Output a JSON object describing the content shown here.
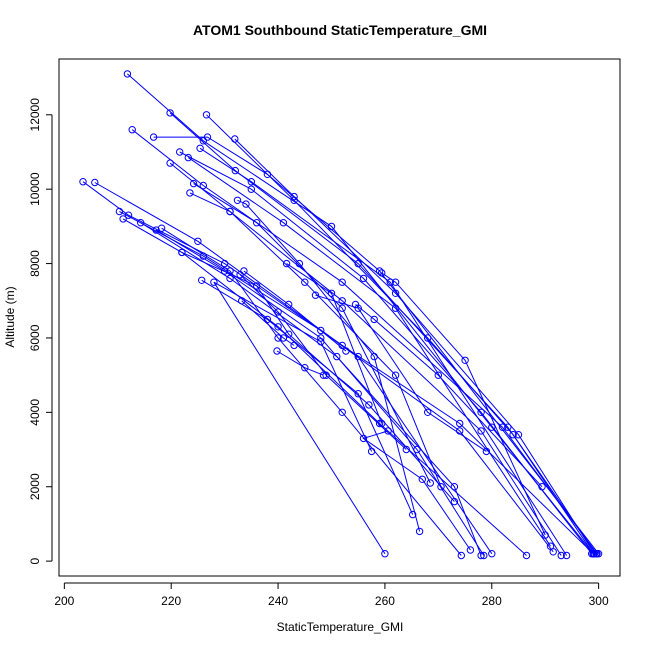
{
  "chart_data": {
    "type": "scatter",
    "title": "ATOM1 Southbound StaticTemperature_GMI",
    "xlabel": "StaticTemperature_GMI",
    "ylabel": "Altitude (m)",
    "xlim": [
      199,
      304
    ],
    "ylim": [
      -400,
      13500
    ],
    "xticks": [
      200,
      220,
      240,
      260,
      280,
      300
    ],
    "yticks": [
      0,
      2000,
      4000,
      6000,
      8000,
      10000,
      12000
    ],
    "series_color": "#0000ff",
    "marker": "open-circle",
    "lines_connecting_points": true,
    "grid": false,
    "profiles": [
      [
        [
          211.8,
          13100
        ],
        [
          226,
          11300
        ],
        [
          250,
          9000
        ],
        [
          280,
          3600
        ],
        [
          299,
          200
        ]
      ],
      [
        [
          219.8,
          12050
        ],
        [
          232,
          10500
        ],
        [
          255,
          8000
        ],
        [
          283,
          3600
        ],
        [
          299.5,
          200
        ]
      ],
      [
        [
          226.6,
          12000
        ],
        [
          243,
          9700
        ],
        [
          268,
          6000
        ],
        [
          284,
          3400
        ],
        [
          299,
          200
        ]
      ],
      [
        [
          212.7,
          11600
        ],
        [
          226,
          10100
        ],
        [
          252,
          7500
        ],
        [
          282,
          3600
        ],
        [
          299.7,
          200
        ]
      ],
      [
        [
          216.7,
          11400
        ],
        [
          226.8,
          11400
        ],
        [
          238,
          10400
        ],
        [
          259,
          7800
        ],
        [
          300,
          200
        ]
      ],
      [
        [
          231.9,
          11350
        ],
        [
          243,
          9800
        ],
        [
          262,
          7200
        ],
        [
          285,
          3400
        ],
        [
          299.2,
          200
        ]
      ],
      [
        [
          221.6,
          11000
        ],
        [
          235,
          10000
        ],
        [
          256,
          7600
        ],
        [
          278,
          4000
        ],
        [
          298.7,
          200
        ]
      ],
      [
        [
          223.2,
          10850
        ],
        [
          241,
          9100
        ],
        [
          262,
          6800
        ],
        [
          291,
          400
        ]
      ],
      [
        [
          225.4,
          11100
        ],
        [
          235,
          10200
        ],
        [
          261,
          7500
        ],
        [
          294,
          150
        ]
      ],
      [
        [
          219.8,
          10700
        ],
        [
          231,
          9400
        ],
        [
          252,
          7000
        ],
        [
          278,
          3500
        ],
        [
          293,
          150
        ]
      ],
      [
        [
          203.5,
          10200
        ],
        [
          212,
          9300
        ],
        [
          230,
          8000
        ],
        [
          255,
          5500
        ],
        [
          280,
          200
        ]
      ],
      [
        [
          205.7,
          10180
        ],
        [
          225,
          8600
        ],
        [
          252,
          5800
        ],
        [
          274,
          3700
        ],
        [
          299,
          200
        ]
      ],
      [
        [
          210.3,
          9400
        ],
        [
          226,
          8200
        ],
        [
          248,
          6200
        ],
        [
          274,
          3500
        ],
        [
          291.5,
          250
        ]
      ],
      [
        [
          211,
          9200
        ],
        [
          222,
          8300
        ],
        [
          240,
          6300
        ],
        [
          259,
          3700
        ],
        [
          286.5,
          150
        ]
      ],
      [
        [
          214.3,
          9100
        ],
        [
          231,
          7600
        ],
        [
          251,
          5500
        ],
        [
          273,
          2000
        ],
        [
          278,
          150
        ]
      ],
      [
        [
          217.2,
          8900
        ],
        [
          230,
          7800
        ],
        [
          248,
          6000
        ],
        [
          266,
          3000
        ],
        [
          278.5,
          150
        ]
      ],
      [
        [
          218.2,
          8950
        ],
        [
          231,
          7800
        ],
        [
          240,
          6000
        ],
        [
          252,
          4000
        ],
        [
          274.3,
          150
        ]
      ],
      [
        [
          222,
          8300
        ],
        [
          236,
          7400
        ],
        [
          242,
          6100
        ],
        [
          257,
          4200
        ],
        [
          273,
          1600
        ]
      ],
      [
        [
          223.5,
          9900
        ],
        [
          231,
          9400
        ],
        [
          245,
          7500
        ],
        [
          262,
          5000
        ],
        [
          270.5,
          2000
        ]
      ],
      [
        [
          224.2,
          10150
        ],
        [
          236,
          9100
        ],
        [
          252,
          6800
        ],
        [
          268.5,
          2100
        ]
      ],
      [
        [
          225.7,
          7550
        ],
        [
          238,
          6500
        ],
        [
          255,
          4500
        ],
        [
          265.2,
          1250
        ]
      ],
      [
        [
          232.4,
          9700
        ],
        [
          234,
          9600
        ],
        [
          244,
          8000
        ],
        [
          258,
          5500
        ],
        [
          266.5,
          800
        ]
      ],
      [
        [
          232.9,
          7700
        ],
        [
          240,
          6700
        ],
        [
          249,
          5000
        ],
        [
          264,
          3000
        ]
      ],
      [
        [
          233.6,
          7800
        ],
        [
          242,
          6900
        ],
        [
          252.7,
          5650
        ]
      ],
      [
        [
          233.2,
          7000
        ],
        [
          241,
          6000
        ],
        [
          243,
          5800
        ]
      ],
      [
        [
          239.8,
          5650
        ],
        [
          245,
          5200
        ],
        [
          248.5,
          5000
        ]
      ],
      [
        [
          241.6,
          8000
        ],
        [
          250,
          7200
        ],
        [
          259.4,
          3700
        ]
      ],
      [
        [
          260,
          200
        ],
        [
          228,
          7500
        ],
        [
          248,
          5900
        ],
        [
          257.5,
          2950
        ]
      ],
      [
        [
          247,
          7150
        ],
        [
          255,
          6800
        ],
        [
          268,
          4000
        ],
        [
          279,
          2950
        ]
      ],
      [
        [
          254.5,
          6900
        ],
        [
          258,
          6500
        ],
        [
          270,
          5000
        ],
        [
          289.4,
          2000
        ]
      ],
      [
        [
          259.4,
          7750
        ],
        [
          262,
          7500
        ],
        [
          275,
          5400
        ],
        [
          290,
          700
        ]
      ],
      [
        [
          260.6,
          3500
        ],
        [
          256,
          3300
        ],
        [
          267,
          2200
        ],
        [
          276,
          300
        ]
      ]
    ]
  }
}
